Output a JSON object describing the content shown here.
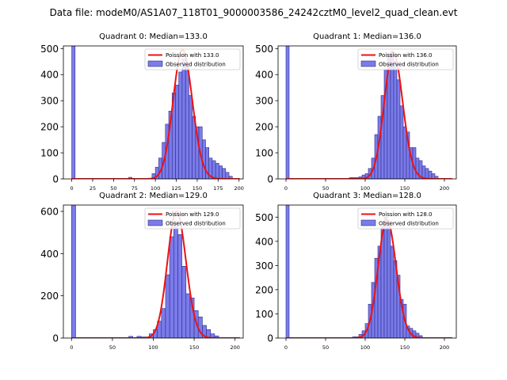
{
  "figure": {
    "suptitle": "Data file: modeM0/AS1A07_118T01_9000003586_24242cztM0_level2_quad_clean.evt"
  },
  "style": {
    "bar_fill": "#7b7bea",
    "bar_edge": "#2d2d8a",
    "line_color": "#ee1111",
    "axis_color": "#000000"
  },
  "chart_data": [
    {
      "type": "bar",
      "title": "Quadrant 0: Median=133.0",
      "xlim": [
        -10,
        205
      ],
      "ylim": [
        0,
        510
      ],
      "xticks": [
        0,
        25,
        50,
        75,
        100,
        125,
        150,
        175,
        200
      ],
      "xtick_labels": [
        "0",
        "25",
        "50",
        "75",
        "100",
        "125",
        "150",
        "175",
        "200"
      ],
      "yticks": [
        0,
        100,
        200,
        300,
        400,
        500
      ],
      "ytick_labels": [
        "0",
        "100",
        "200",
        "300",
        "400",
        "500"
      ],
      "bin_width": 4,
      "hist_bins": [
        [
          0,
          510
        ],
        [
          68,
          6
        ],
        [
          96,
          20
        ],
        [
          100,
          45
        ],
        [
          104,
          80
        ],
        [
          108,
          140
        ],
        [
          112,
          210
        ],
        [
          116,
          260
        ],
        [
          120,
          330
        ],
        [
          124,
          360
        ],
        [
          128,
          410
        ],
        [
          132,
          460
        ],
        [
          136,
          440
        ],
        [
          140,
          320
        ],
        [
          144,
          240
        ],
        [
          148,
          200
        ],
        [
          152,
          200
        ],
        [
          156,
          150
        ],
        [
          160,
          120
        ],
        [
          164,
          80
        ],
        [
          168,
          70
        ],
        [
          172,
          60
        ],
        [
          176,
          50
        ],
        [
          180,
          40
        ],
        [
          184,
          25
        ],
        [
          188,
          10
        ]
      ],
      "poisson_mean": 133.0,
      "poisson_peak": 495,
      "legend": {
        "line_label": "Poission with 133.0",
        "hist_label": "Observed distribution",
        "placement": "upper-right"
      }
    },
    {
      "type": "bar",
      "title": "Quadrant 1: Median=136.0",
      "xlim": [
        -10,
        215
      ],
      "ylim": [
        0,
        510
      ],
      "xticks": [
        0,
        50,
        100,
        150,
        200
      ],
      "xtick_labels": [
        "0",
        "50",
        "100",
        "150",
        "200"
      ],
      "yticks": [
        0,
        100,
        200,
        300,
        400,
        500
      ],
      "ytick_labels": [
        "0",
        "100",
        "200",
        "300",
        "400",
        "500"
      ],
      "bin_width": 4,
      "hist_bins": [
        [
          0,
          510
        ],
        [
          80,
          5
        ],
        [
          84,
          5
        ],
        [
          88,
          5
        ],
        [
          92,
          8
        ],
        [
          96,
          15
        ],
        [
          100,
          20
        ],
        [
          104,
          40
        ],
        [
          108,
          80
        ],
        [
          112,
          170
        ],
        [
          116,
          240
        ],
        [
          120,
          320
        ],
        [
          124,
          420
        ],
        [
          128,
          480
        ],
        [
          132,
          490
        ],
        [
          136,
          450
        ],
        [
          140,
          380
        ],
        [
          144,
          280
        ],
        [
          148,
          200
        ],
        [
          152,
          180
        ],
        [
          156,
          120
        ],
        [
          160,
          120
        ],
        [
          164,
          80
        ],
        [
          168,
          70
        ],
        [
          172,
          50
        ],
        [
          176,
          40
        ],
        [
          180,
          30
        ],
        [
          184,
          20
        ],
        [
          188,
          10
        ]
      ],
      "poisson_mean": 136.0,
      "poisson_peak": 485,
      "legend": {
        "line_label": "Poission with 136.0",
        "hist_label": "Observed distribution",
        "placement": "upper-right"
      }
    },
    {
      "type": "bar",
      "title": "Quadrant 2: Median=129.0",
      "xlim": [
        -10,
        210
      ],
      "ylim": [
        0,
        630
      ],
      "xticks": [
        0,
        50,
        100,
        150,
        200
      ],
      "xtick_labels": [
        "0",
        "50",
        "100",
        "150",
        "200"
      ],
      "yticks": [
        0,
        200,
        400,
        600
      ],
      "ytick_labels": [
        "0",
        "200",
        "400",
        "600"
      ],
      "bin_width": 5,
      "hist_bins": [
        [
          0,
          630
        ],
        [
          70,
          8
        ],
        [
          80,
          8
        ],
        [
          85,
          5
        ],
        [
          90,
          5
        ],
        [
          95,
          20
        ],
        [
          100,
          40
        ],
        [
          105,
          80
        ],
        [
          110,
          140
        ],
        [
          115,
          300
        ],
        [
          120,
          480
        ],
        [
          125,
          550
        ],
        [
          130,
          490
        ],
        [
          135,
          340
        ],
        [
          140,
          210
        ],
        [
          145,
          190
        ],
        [
          150,
          130
        ],
        [
          155,
          100
        ],
        [
          160,
          60
        ],
        [
          165,
          40
        ],
        [
          170,
          20
        ],
        [
          175,
          10
        ]
      ],
      "poisson_mean": 129.0,
      "poisson_peak": 600,
      "legend": {
        "line_label": "Poission with 129.0",
        "hist_label": "Observed distribution",
        "placement": "upper-right"
      }
    },
    {
      "type": "bar",
      "title": "Quadrant 3: Median=128.0",
      "xlim": [
        -10,
        215
      ],
      "ylim": [
        0,
        550
      ],
      "xticks": [
        0,
        50,
        100,
        150,
        200
      ],
      "xtick_labels": [
        "0",
        "50",
        "100",
        "150",
        "200"
      ],
      "yticks": [
        0,
        100,
        200,
        300,
        400,
        500
      ],
      "ytick_labels": [
        "0",
        "100",
        "200",
        "300",
        "400",
        "500"
      ],
      "bin_width": 4,
      "hist_bins": [
        [
          0,
          550
        ],
        [
          84,
          5
        ],
        [
          88,
          5
        ],
        [
          92,
          15
        ],
        [
          96,
          30
        ],
        [
          100,
          60
        ],
        [
          104,
          140
        ],
        [
          108,
          230
        ],
        [
          112,
          330
        ],
        [
          116,
          380
        ],
        [
          120,
          460
        ],
        [
          124,
          500
        ],
        [
          128,
          480
        ],
        [
          132,
          380
        ],
        [
          136,
          320
        ],
        [
          140,
          260
        ],
        [
          144,
          160
        ],
        [
          148,
          140
        ],
        [
          152,
          50
        ],
        [
          156,
          40
        ],
        [
          160,
          30
        ],
        [
          164,
          20
        ],
        [
          168,
          10
        ]
      ],
      "poisson_mean": 128.0,
      "poisson_peak": 490,
      "legend": {
        "line_label": "Poission with 128.0",
        "hist_label": "Observed distribution",
        "placement": "upper-right"
      }
    }
  ]
}
